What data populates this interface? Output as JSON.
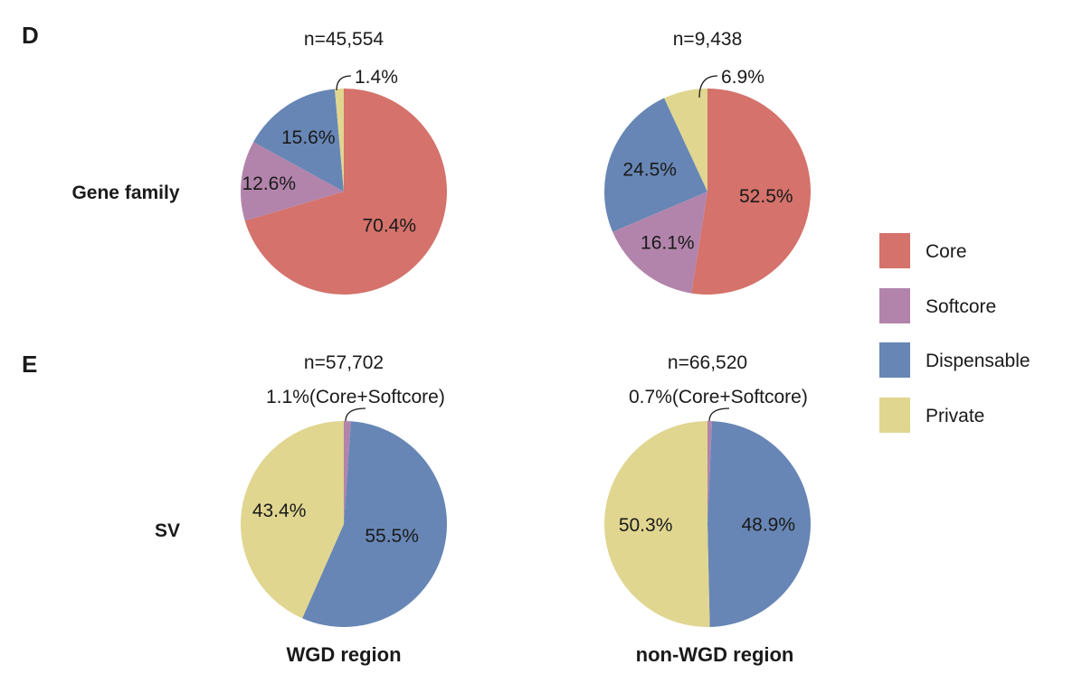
{
  "panels": {
    "d": "D",
    "e": "E"
  },
  "row_labels": {
    "gene_family": "Gene family",
    "sv": "SV"
  },
  "column_labels": {
    "wgd": "WGD region",
    "non_wgd": "non-WGD region"
  },
  "colors": {
    "Core": "#d4726b",
    "Softcore": "#b284ab",
    "Dispensable": "#6786b5",
    "Private": "#e0d690"
  },
  "legend": {
    "items": [
      "Core",
      "Softcore",
      "Dispensable",
      "Private"
    ]
  },
  "chart_data": [
    {
      "type": "pie",
      "n_label": "n=45,554",
      "categories": [
        "Core",
        "Softcore",
        "Dispensable",
        "Private"
      ],
      "values": [
        70.4,
        12.6,
        15.6,
        1.4
      ],
      "labels": [
        "70.4%",
        "12.6%",
        "15.6%",
        ""
      ],
      "callout": "1.4%"
    },
    {
      "type": "pie",
      "n_label": "n=9,438",
      "categories": [
        "Core",
        "Softcore",
        "Dispensable",
        "Private"
      ],
      "values": [
        52.5,
        16.1,
        24.5,
        6.9
      ],
      "labels": [
        "52.5%",
        "16.1%",
        "24.5%",
        ""
      ],
      "callout": "6.9%"
    },
    {
      "type": "pie",
      "n_label": "n=57,702",
      "categories": [
        "Core+Softcore",
        "Dispensable",
        "Private"
      ],
      "values": [
        1.1,
        55.5,
        43.4
      ],
      "labels": [
        "",
        "55.5%",
        "43.4%"
      ],
      "callout": "1.1%(Core+Softcore)"
    },
    {
      "type": "pie",
      "n_label": "n=66,520",
      "categories": [
        "Core+Softcore",
        "Dispensable",
        "Private"
      ],
      "values": [
        0.7,
        48.9,
        50.3
      ],
      "labels": [
        "",
        "48.9%",
        "50.3%"
      ],
      "callout": "0.7%(Core+Softcore)"
    }
  ]
}
